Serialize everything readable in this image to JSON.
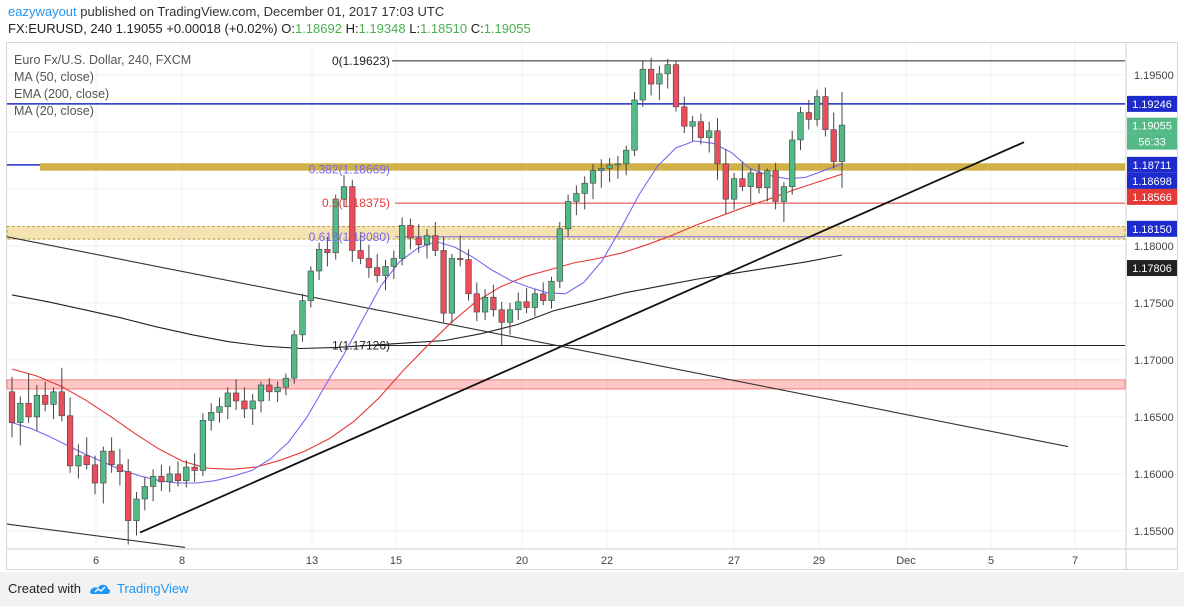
{
  "header": {
    "publisher": "eazywayout",
    "published_text": " published on TradingView.com, December 01, 2017 17:03 UTC",
    "symbol": "FX:EURUSD, 240",
    "price": "1.19055",
    "change": "+0.00018 (+0.02%)",
    "o_label": "O:",
    "o_val": "1.18692",
    "h_label": "H:",
    "h_val": "1.19348",
    "l_label": "L:",
    "l_val": "1.18510",
    "c_label": "C:",
    "c_val": "1.19055"
  },
  "legend": {
    "title": "Euro Fx/U.S. Dollar, 240, FXCM",
    "items": [
      "MA (50, close)",
      "EMA (200, close)",
      "MA (20, close)"
    ]
  },
  "footer": {
    "created_with": "Created with",
    "brand": "TradingView"
  },
  "colors": {
    "up": "#53b987",
    "down": "#eb4d5c",
    "ema200": "#222222",
    "ma20": "#7b68ee",
    "ma50": "#e53935",
    "fib": "#b39a2e",
    "accent": "#2196f3",
    "support": "#ffb3b3"
  },
  "chart_data": {
    "type": "candlestick",
    "ylim": [
      1.1535,
      1.1978
    ],
    "x_ticks": [
      "6",
      "8",
      "13",
      "15",
      "20",
      "22",
      "27",
      "29",
      "Dec",
      "5",
      "7"
    ],
    "y_ticks": [
      "1.19500",
      "1.19000",
      "1.18500",
      "1.18000",
      "1.17500",
      "1.17000",
      "1.16500",
      "1.16000",
      "1.15500"
    ],
    "price_tags": [
      {
        "label": "1.19246",
        "value": 1.19246,
        "color": "#1e2bcc"
      },
      {
        "label": "1.19055",
        "value": 1.19055,
        "color": "#53b987"
      },
      {
        "label": "56:33",
        "value": 1.18915,
        "color": "#53b987"
      },
      {
        "label": "1.18711",
        "value": 1.18711,
        "color": "#1e2bcc"
      },
      {
        "label": "1.18698",
        "value": 1.1857,
        "color": "#1e2bcc"
      },
      {
        "label": "1.18566",
        "value": 1.1843,
        "color": "#e53935"
      },
      {
        "label": "1.18150",
        "value": 1.1815,
        "color": "#1e2bcc"
      },
      {
        "label": "1.17806",
        "value": 1.17806,
        "color": "#222222"
      }
    ],
    "fib_levels": [
      {
        "label": "0(1.19623)",
        "value": 1.19623,
        "color": "#222222"
      },
      {
        "label": "0.382(1.18669)",
        "value": 1.18669,
        "color": "#7b68ee"
      },
      {
        "label": "0.5(1.18375)",
        "value": 1.18375,
        "color": "#e53935"
      },
      {
        "label": "0.618(1.18080)",
        "value": 1.1808,
        "color": "#7b68ee"
      },
      {
        "label": "1(1.17126)",
        "value": 1.17126,
        "color": "#222222"
      }
    ],
    "candles": [
      [
        1.1672,
        1.1685,
        1.1632,
        1.1645
      ],
      [
        1.1645,
        1.1668,
        1.1625,
        1.1662
      ],
      [
        1.1662,
        1.1688,
        1.1645,
        1.165
      ],
      [
        1.165,
        1.1678,
        1.1638,
        1.1669
      ],
      [
        1.1669,
        1.1681,
        1.1655,
        1.1661
      ],
      [
        1.1661,
        1.1676,
        1.1648,
        1.1672
      ],
      [
        1.1672,
        1.1693,
        1.1646,
        1.1651
      ],
      [
        1.1651,
        1.1667,
        1.1601,
        1.1607
      ],
      [
        1.1607,
        1.1626,
        1.1596,
        1.1616
      ],
      [
        1.1616,
        1.1632,
        1.1604,
        1.1608
      ],
      [
        1.1608,
        1.1616,
        1.1582,
        1.1592
      ],
      [
        1.1592,
        1.1624,
        1.1574,
        1.162
      ],
      [
        1.162,
        1.1632,
        1.1601,
        1.1608
      ],
      [
        1.1608,
        1.1622,
        1.159,
        1.1602
      ],
      [
        1.1602,
        1.1613,
        1.1538,
        1.1559
      ],
      [
        1.1559,
        1.1584,
        1.1546,
        1.1578
      ],
      [
        1.1578,
        1.1597,
        1.1568,
        1.1589
      ],
      [
        1.1589,
        1.1604,
        1.1576,
        1.1598
      ],
      [
        1.1598,
        1.1608,
        1.1585,
        1.1593
      ],
      [
        1.1593,
        1.1607,
        1.1584,
        1.16
      ],
      [
        1.16,
        1.1611,
        1.1589,
        1.1594
      ],
      [
        1.1594,
        1.1612,
        1.1588,
        1.1606
      ],
      [
        1.1606,
        1.1618,
        1.1593,
        1.1603
      ],
      [
        1.1603,
        1.1653,
        1.1598,
        1.1647
      ],
      [
        1.1647,
        1.1662,
        1.1638,
        1.1654
      ],
      [
        1.1654,
        1.1667,
        1.1645,
        1.1659
      ],
      [
        1.1659,
        1.1676,
        1.1648,
        1.1671
      ],
      [
        1.1671,
        1.1683,
        1.1656,
        1.1664
      ],
      [
        1.1664,
        1.1676,
        1.1649,
        1.1657
      ],
      [
        1.1657,
        1.167,
        1.1643,
        1.1664
      ],
      [
        1.1664,
        1.1681,
        1.1654,
        1.1678
      ],
      [
        1.1678,
        1.1684,
        1.1664,
        1.1672
      ],
      [
        1.1672,
        1.1681,
        1.1663,
        1.1676
      ],
      [
        1.1676,
        1.1688,
        1.1669,
        1.1684
      ],
      [
        1.1684,
        1.1726,
        1.1679,
        1.1722
      ],
      [
        1.1722,
        1.1758,
        1.1716,
        1.1752
      ],
      [
        1.1752,
        1.1782,
        1.1746,
        1.1778
      ],
      [
        1.1778,
        1.1803,
        1.177,
        1.1797
      ],
      [
        1.1797,
        1.1808,
        1.1782,
        1.1794
      ],
      [
        1.1794,
        1.1845,
        1.1788,
        1.1841
      ],
      [
        1.1841,
        1.1862,
        1.1834,
        1.1852
      ],
      [
        1.1852,
        1.1858,
        1.1786,
        1.1796
      ],
      [
        1.1796,
        1.1812,
        1.1784,
        1.1789
      ],
      [
        1.1789,
        1.1801,
        1.1772,
        1.1781
      ],
      [
        1.1781,
        1.1793,
        1.1768,
        1.1774
      ],
      [
        1.1774,
        1.1788,
        1.1761,
        1.1782
      ],
      [
        1.1782,
        1.1796,
        1.1771,
        1.1789
      ],
      [
        1.1789,
        1.1825,
        1.1783,
        1.1818
      ],
      [
        1.1818,
        1.1824,
        1.1797,
        1.1807
      ],
      [
        1.1807,
        1.1819,
        1.1794,
        1.1801
      ],
      [
        1.1801,
        1.1815,
        1.1789,
        1.1809
      ],
      [
        1.1809,
        1.1821,
        1.1791,
        1.1796
      ],
      [
        1.1796,
        1.1808,
        1.1733,
        1.1741
      ],
      [
        1.1741,
        1.1793,
        1.1732,
        1.1789
      ],
      [
        1.1789,
        1.1809,
        1.1782,
        1.1788
      ],
      [
        1.1788,
        1.1797,
        1.1752,
        1.1758
      ],
      [
        1.1758,
        1.1768,
        1.1734,
        1.1742
      ],
      [
        1.1742,
        1.1762,
        1.1735,
        1.1755
      ],
      [
        1.1755,
        1.1766,
        1.1738,
        1.1744
      ],
      [
        1.1744,
        1.1751,
        1.1713,
        1.1733
      ],
      [
        1.1733,
        1.175,
        1.1722,
        1.1744
      ],
      [
        1.1744,
        1.1759,
        1.1735,
        1.1751
      ],
      [
        1.1751,
        1.1763,
        1.1741,
        1.1746
      ],
      [
        1.1746,
        1.1762,
        1.1738,
        1.1758
      ],
      [
        1.1758,
        1.1768,
        1.1748,
        1.1752
      ],
      [
        1.1752,
        1.1773,
        1.1745,
        1.1769
      ],
      [
        1.1769,
        1.1821,
        1.1763,
        1.1815
      ],
      [
        1.1815,
        1.1845,
        1.1808,
        1.1839
      ],
      [
        1.1839,
        1.1853,
        1.1827,
        1.1846
      ],
      [
        1.1846,
        1.1861,
        1.1832,
        1.1855
      ],
      [
        1.1855,
        1.1872,
        1.1841,
        1.1866
      ],
      [
        1.1866,
        1.1876,
        1.1851,
        1.1868
      ],
      [
        1.1868,
        1.1877,
        1.1856,
        1.1871
      ],
      [
        1.1871,
        1.1879,
        1.1859,
        1.1872
      ],
      [
        1.1872,
        1.1888,
        1.1862,
        1.1884
      ],
      [
        1.1884,
        1.1935,
        1.1879,
        1.1928
      ],
      [
        1.1928,
        1.1962,
        1.1922,
        1.1955
      ],
      [
        1.1955,
        1.1965,
        1.1932,
        1.1942
      ],
      [
        1.1942,
        1.1958,
        1.1928,
        1.1951
      ],
      [
        1.1951,
        1.1964,
        1.1938,
        1.1959
      ],
      [
        1.1959,
        1.1962,
        1.1918,
        1.1922
      ],
      [
        1.1922,
        1.1931,
        1.1899,
        1.1905
      ],
      [
        1.1905,
        1.1914,
        1.1892,
        1.1909
      ],
      [
        1.1909,
        1.1916,
        1.1889,
        1.1895
      ],
      [
        1.1895,
        1.1909,
        1.1882,
        1.1901
      ],
      [
        1.1901,
        1.1912,
        1.1858,
        1.1872
      ],
      [
        1.1872,
        1.1885,
        1.1828,
        1.1841
      ],
      [
        1.1841,
        1.1864,
        1.1832,
        1.1859
      ],
      [
        1.1859,
        1.1874,
        1.1848,
        1.1852
      ],
      [
        1.1852,
        1.1868,
        1.1838,
        1.1864
      ],
      [
        1.1864,
        1.1872,
        1.1846,
        1.1851
      ],
      [
        1.1851,
        1.1868,
        1.1839,
        1.1866
      ],
      [
        1.1866,
        1.1873,
        1.1832,
        1.1839
      ],
      [
        1.1839,
        1.1856,
        1.1821,
        1.1852
      ],
      [
        1.1852,
        1.1901,
        1.1845,
        1.1893
      ],
      [
        1.1893,
        1.1922,
        1.1884,
        1.1917
      ],
      [
        1.1917,
        1.1928,
        1.1902,
        1.1911
      ],
      [
        1.1911,
        1.1937,
        1.1905,
        1.1931
      ],
      [
        1.1931,
        1.1939,
        1.1896,
        1.1902
      ],
      [
        1.1902,
        1.1917,
        1.1868,
        1.1874
      ],
      [
        1.1874,
        1.1935,
        1.1851,
        1.1906
      ]
    ],
    "ma20": [
      1.1645,
      1.164,
      1.1633,
      1.1625,
      1.1617,
      1.161,
      1.1603,
      1.1598,
      1.1594,
      1.1592,
      1.1592,
      1.1594,
      1.1598,
      1.1603,
      1.1613,
      1.1628,
      1.165,
      1.1678,
      1.1705,
      1.1735,
      1.1765,
      1.1786,
      1.1798,
      1.1804,
      1.1799,
      1.179,
      1.1779,
      1.177,
      1.1764,
      1.1759,
      1.1758,
      1.1768,
      1.1787,
      1.1815,
      1.1845,
      1.187,
      1.1886,
      1.1892,
      1.189,
      1.1882,
      1.1868,
      1.1862,
      1.1859,
      1.186,
      1.1866,
      1.1872
    ],
    "ma50": [
      1.1692,
      1.1686,
      1.1677,
      1.1665,
      1.1651,
      1.1636,
      1.1622,
      1.1611,
      1.1605,
      1.1604,
      1.1606,
      1.1612,
      1.162,
      1.1631,
      1.1646,
      1.1666,
      1.169,
      1.1712,
      1.1733,
      1.1751,
      1.1764,
      1.1773,
      1.1779,
      1.1785,
      1.1789,
      1.1794,
      1.1801,
      1.1809,
      1.1818,
      1.1826,
      1.1834,
      1.1841,
      1.1849,
      1.1856,
      1.1863
    ],
    "ema200": [
      1.1757,
      1.1751,
      1.1744,
      1.1737,
      1.1729,
      1.1722,
      1.1716,
      1.1712,
      1.171,
      1.1711,
      1.1713,
      1.1715,
      1.1717,
      1.1723,
      1.1731,
      1.1743,
      1.1751,
      1.1759,
      1.1765,
      1.1771,
      1.1776,
      1.1781,
      1.1786,
      1.1792
    ]
  }
}
